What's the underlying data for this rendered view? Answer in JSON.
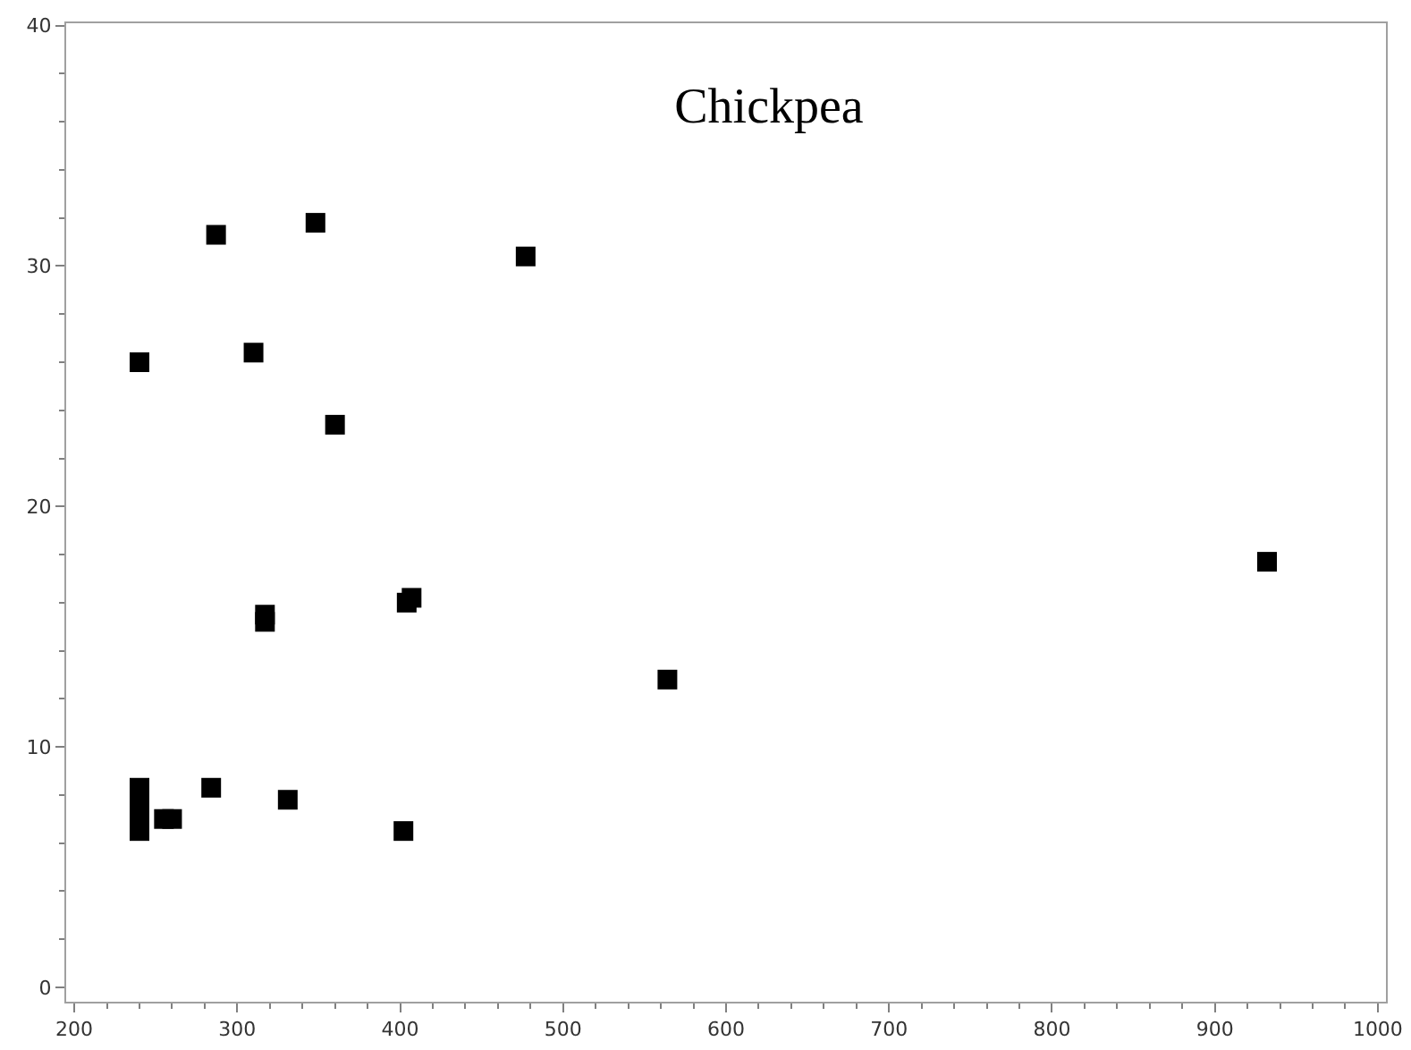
{
  "chart_data": {
    "type": "scatter",
    "title": "Chickpea",
    "marker": "square",
    "grid": false,
    "x": [
      240,
      240,
      240,
      240,
      240,
      255,
      260,
      284,
      331,
      402,
      317,
      317,
      404,
      407,
      564,
      932,
      360,
      310,
      287,
      348,
      477
    ],
    "series": [
      {
        "color": "#000000",
        "values": [
          8.3,
          7.7,
          7.1,
          6.5,
          26.0,
          7.0,
          7.0,
          8.3,
          7.8,
          6.5,
          15.5,
          15.2,
          16.0,
          16.2,
          12.8,
          17.7,
          23.4,
          26.4,
          31.3,
          31.8,
          30.4
        ]
      }
    ],
    "xlim": [
      195,
      1005
    ],
    "ylim": [
      -0.6,
      40.1
    ],
    "xticks": [
      200,
      300,
      400,
      500,
      600,
      700,
      800,
      900,
      1000
    ],
    "yticks": [
      0,
      10,
      20,
      30,
      40
    ]
  }
}
